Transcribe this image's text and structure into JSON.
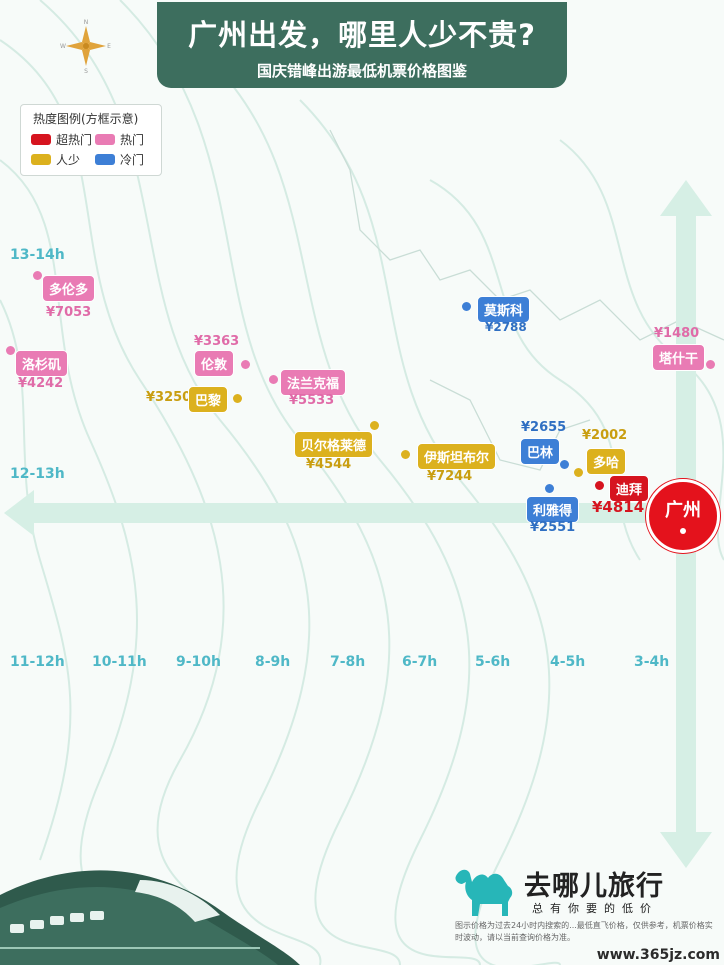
{
  "header": {
    "title": "广州出发，哪里人少不贵?",
    "subtitle": "国庆错峰出游最低机票价格图鉴"
  },
  "compass": {
    "n": "N",
    "e": "E",
    "s": "S",
    "w": "W"
  },
  "legend": {
    "title": "热度图例(方框示意)",
    "items": [
      {
        "label": "超热门",
        "color": "#d6141f"
      },
      {
        "label": "热门",
        "color": "#e97bb4"
      },
      {
        "label": "人少",
        "color": "#dcb11e"
      },
      {
        "label": "冷门",
        "color": "#3d7fd6"
      }
    ]
  },
  "time_axis": {
    "vertical": [
      "13-14h",
      "12-13h"
    ],
    "horizontal": [
      "11-12h",
      "10-11h",
      "9-10h",
      "8-9h",
      "7-8h",
      "6-7h",
      "5-6h",
      "4-5h",
      "3-4h"
    ]
  },
  "origin": "广州",
  "destinations": [
    {
      "name": "多伦多",
      "price": "¥7053",
      "category": "热门"
    },
    {
      "name": "洛杉矶",
      "price": "¥4242",
      "category": "热门"
    },
    {
      "name": "伦敦",
      "price": "¥3363",
      "category": "热门"
    },
    {
      "name": "巴黎",
      "price": "¥3250",
      "category": "人少"
    },
    {
      "name": "法兰克福",
      "price": "¥5533",
      "category": "热门"
    },
    {
      "name": "贝尔格莱德",
      "price": "¥4544",
      "category": "人少"
    },
    {
      "name": "伊斯坦布尔",
      "price": "¥7244",
      "category": "人少"
    },
    {
      "name": "莫斯科",
      "price": "¥2788",
      "category": "冷门"
    },
    {
      "name": "巴林",
      "price": "¥2655",
      "category": "冷门"
    },
    {
      "name": "多哈",
      "price": "¥2002",
      "category": "人少"
    },
    {
      "name": "迪拜",
      "price": "¥4814",
      "category": "超热门"
    },
    {
      "name": "利雅得",
      "price": "¥2551",
      "category": "冷门"
    },
    {
      "name": "塔什干",
      "price": "¥1480",
      "category": "热门"
    }
  ],
  "brand": {
    "name": "去哪儿旅行",
    "slogan": "总有你要的低价"
  },
  "footnote": "图示价格为过去24小时内搜索的...最低直飞价格，仅供参考，机票价格实时波动，请以当前查询价格为准。",
  "watermark": "www.365jz.com"
}
